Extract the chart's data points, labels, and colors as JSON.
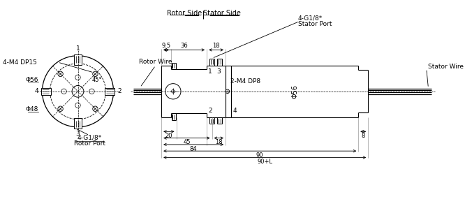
{
  "bg_color": "#ffffff",
  "line_color": "#000000",
  "font_size": 6.5,
  "annotations": {
    "4_M4_DP15": "4-M4 DP15",
    "phi56_left": "Φ56",
    "phi48": "Φ48",
    "rotor_wire": "Rotor Wire",
    "stator_wire": "Stator Wire",
    "rotor_side": "Rotor Side",
    "stator_side": "Stator Side",
    "rotor_port_1": "4-G1/8*",
    "rotor_port_2": "Rotor Port",
    "stator_port_1": "4-G1/8*",
    "stator_port_2": "Stator Port",
    "two_M4_DP8": "2-M4 DP8",
    "phi56_right": "Φ56",
    "dim_9p5": "9.5",
    "dim_36": "36",
    "dim_18_top": "18",
    "dim_20": "20",
    "dim_45": "45",
    "dim_18_bot": "18",
    "dim_8": "8",
    "dim_84": "84",
    "dim_90": "90",
    "dim_90L": "90+L",
    "angle_45": "45°",
    "label_1": "1",
    "label_2": "2",
    "label_3": "3",
    "label_4": "4"
  }
}
